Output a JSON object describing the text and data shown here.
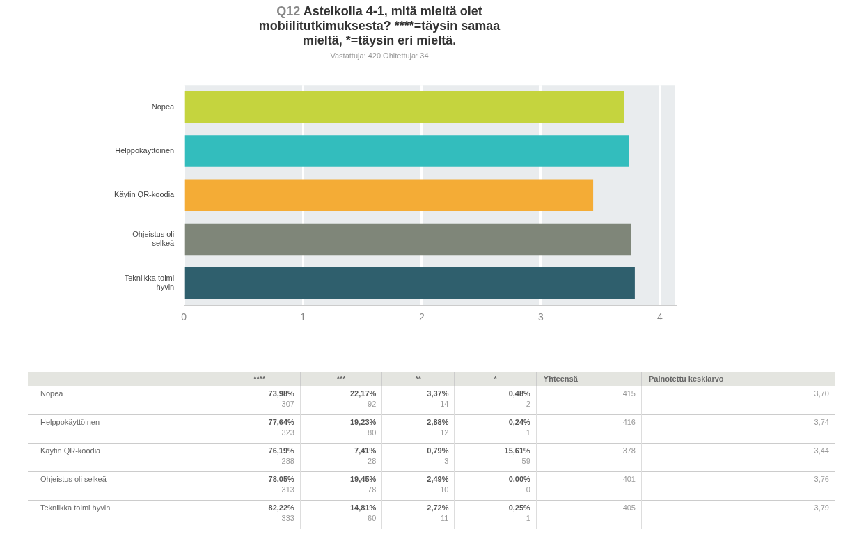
{
  "chart_data": [
    {
      "type": "bar",
      "orientation": "horizontal",
      "title": "Q12 Asteikolla 4-1, mitä mieltä olet mobiilitutkimuksesta? ****=täysin samaa mieltä, *=täysin eri mieltä.",
      "subtitle": "Vastattuja: 420    Ohitettuja: 34",
      "categories": [
        "Nopea",
        "Helppokäyttöinen",
        "Käytin QR-koodia",
        "Ohjeistus oli selkeä",
        "Tekniikka toimi hyvin"
      ],
      "values": [
        3.7,
        3.74,
        3.44,
        3.76,
        3.79
      ],
      "colors": [
        "#c5d43e",
        "#33bdbd",
        "#f4ac36",
        "#7f8679",
        "#2f5f6d"
      ],
      "xlim": [
        0,
        4.13
      ],
      "xticks": [
        0,
        1,
        2,
        3,
        4
      ],
      "grid": "x",
      "legend": false
    },
    {
      "type": "other",
      "categories": [
        null,
        "****",
        "***",
        "**",
        "*",
        "Yhteensä",
        "Painotettu keskiarvo"
      ],
      "y_categories": [
        "Nopea",
        "Helppokäyttöinen",
        "Käytin QR-koodia",
        "Ohjeistus oli selkeä",
        "Tekniikka toimi hyvin"
      ],
      "cell_labels": [
        [
          [
            "73,98%",
            "307"
          ],
          [
            "22,17%",
            "92"
          ],
          [
            "3,37%",
            "14"
          ],
          [
            "0,48%",
            "2"
          ],
          [
            "415"
          ],
          [
            "3,70"
          ]
        ],
        [
          [
            "77,64%",
            "323"
          ],
          [
            "19,23%",
            "80"
          ],
          [
            "2,88%",
            "12"
          ],
          [
            "0,24%",
            "1"
          ],
          [
            "416"
          ],
          [
            "3,74"
          ]
        ],
        [
          [
            "76,19%",
            "288"
          ],
          [
            "7,41%",
            "28"
          ],
          [
            "0,79%",
            "3"
          ],
          [
            "15,61%",
            "59"
          ],
          [
            "378"
          ],
          [
            "3,44"
          ]
        ],
        [
          [
            "78,05%",
            "313"
          ],
          [
            "19,45%",
            "78"
          ],
          [
            "2,49%",
            "10"
          ],
          [
            "0,00%",
            "0"
          ],
          [
            "401"
          ],
          [
            "3,76"
          ]
        ],
        [
          [
            "82,22%",
            "333"
          ],
          [
            "14,81%",
            "60"
          ],
          [
            "2,72%",
            "11"
          ],
          [
            "0,25%",
            "1"
          ],
          [
            "405"
          ],
          [
            "3,79"
          ]
        ]
      ]
    }
  ]
}
